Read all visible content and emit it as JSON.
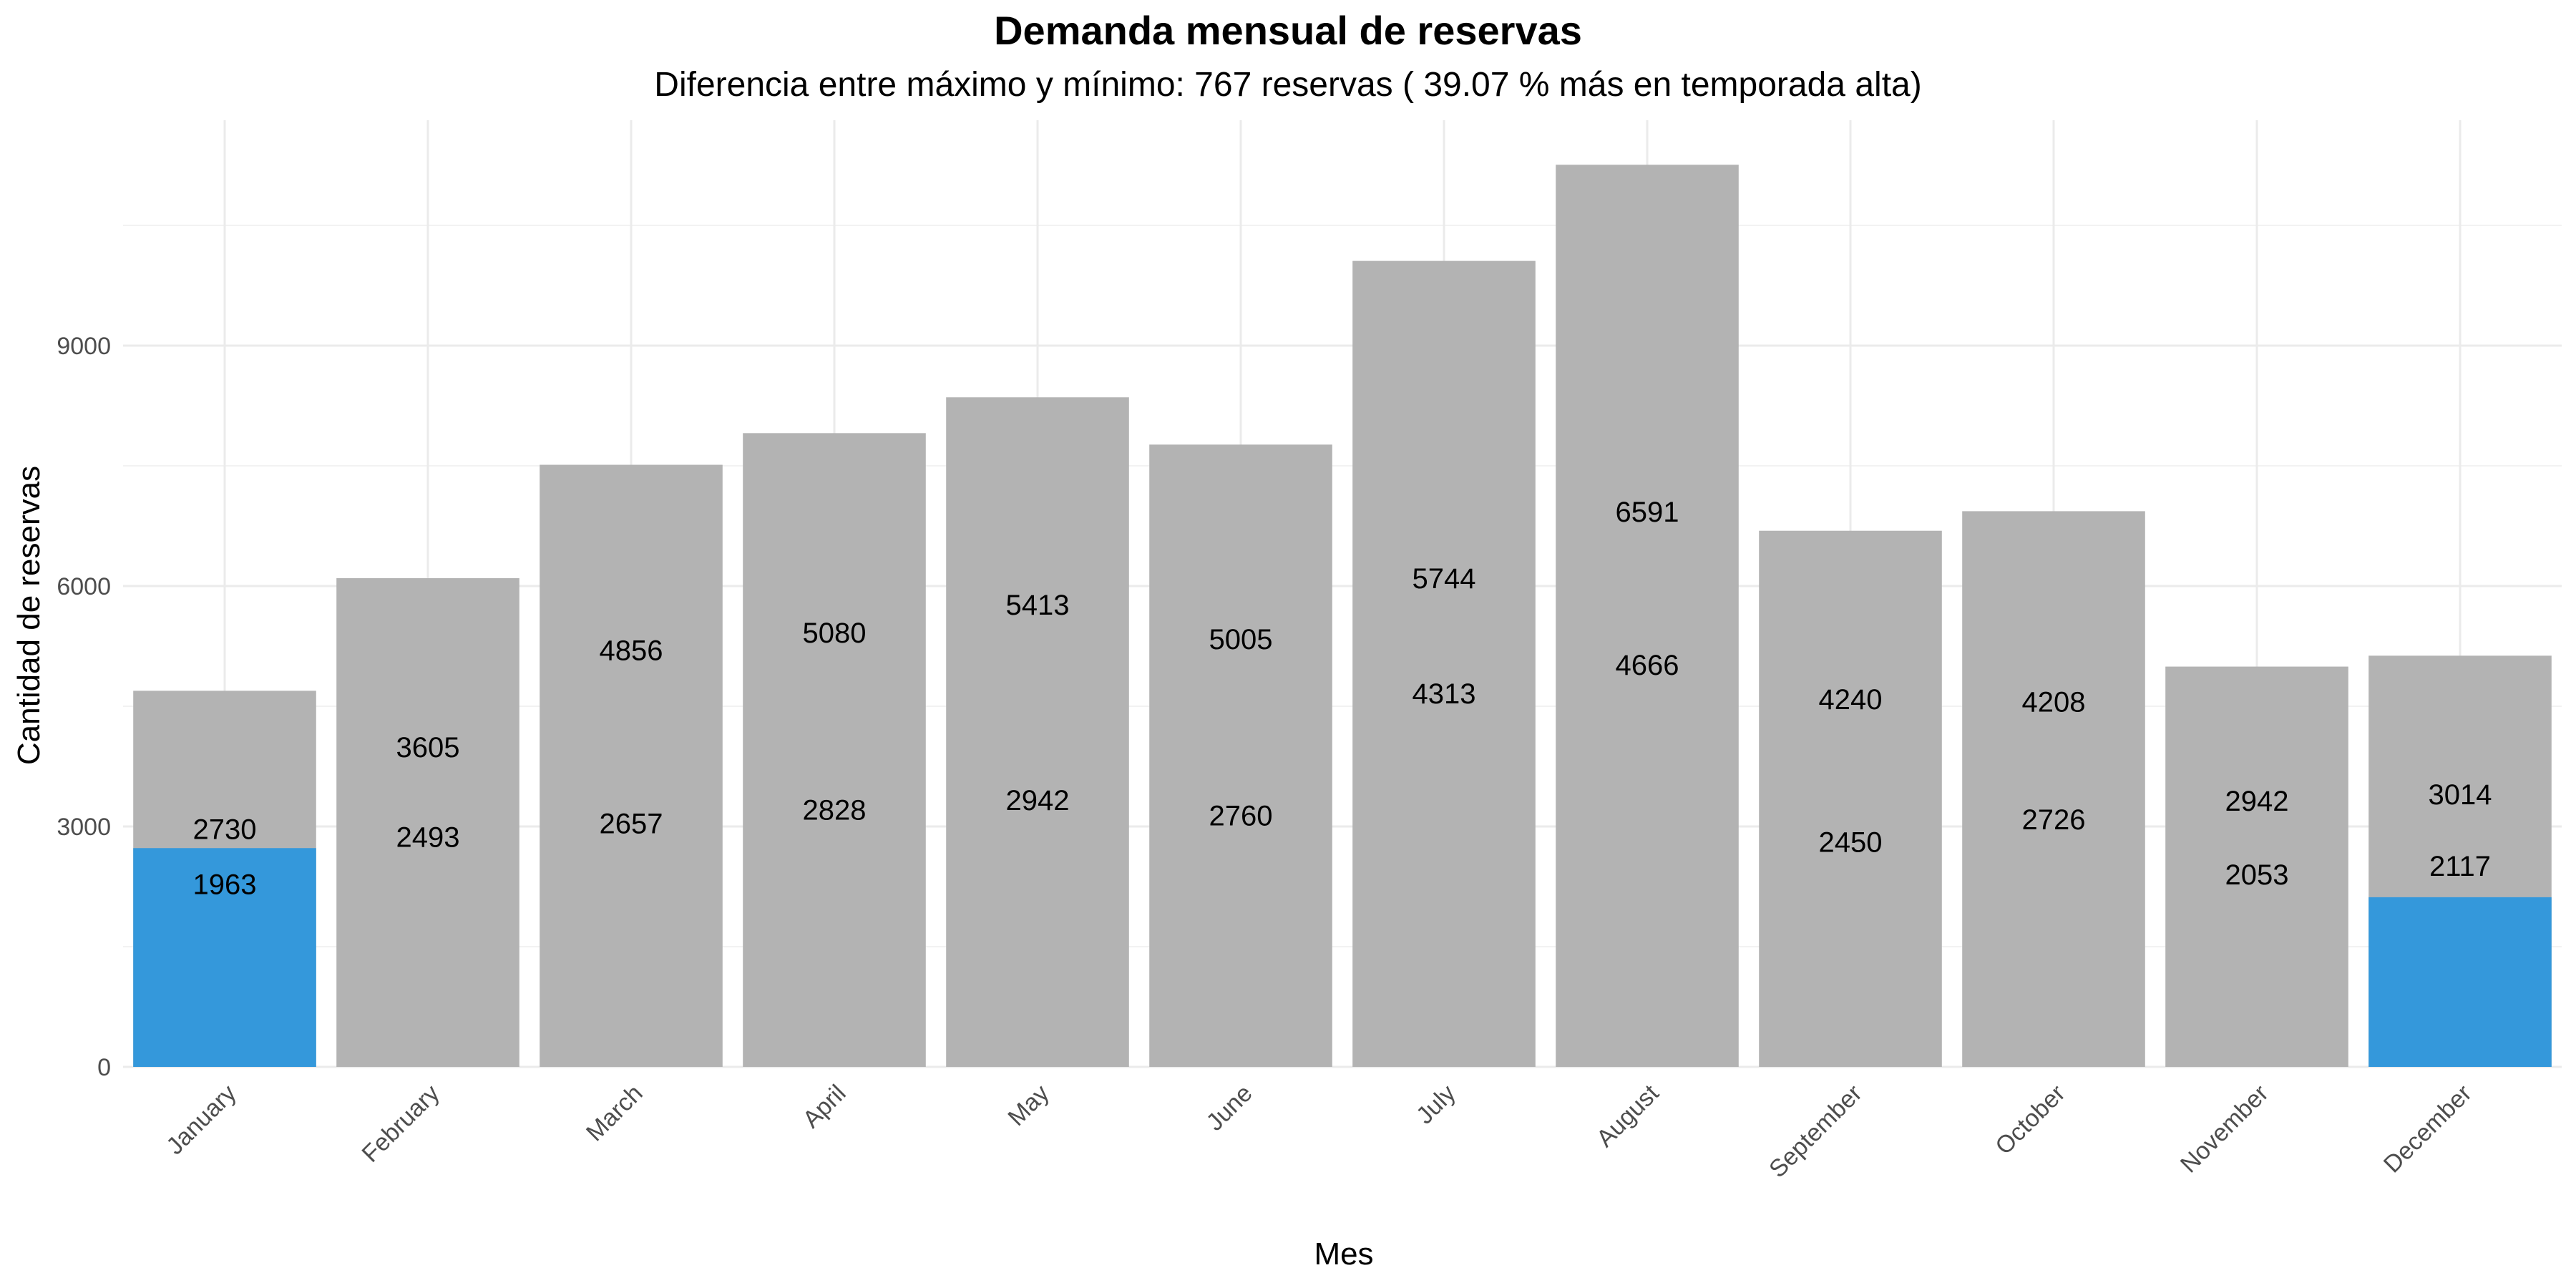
{
  "chart_data": {
    "type": "bar",
    "title": "Demanda mensual de reservas",
    "subtitle": "Diferencia entre máximo y mínimo: 767 reservas ( 39.07 % más en temporada alta)",
    "xlabel": "Mes",
    "ylabel": "Cantidad de reservas",
    "ylim": [
      0,
      11800
    ],
    "yticks": [
      0,
      3000,
      6000,
      9000
    ],
    "grid": true,
    "categories": [
      "January",
      "February",
      "March",
      "April",
      "May",
      "June",
      "July",
      "August",
      "September",
      "October",
      "November",
      "December"
    ],
    "values": [
      4693,
      6098,
      7513,
      7908,
      8355,
      7765,
      10057,
      11257,
      6690,
      6934,
      4995,
      5131
    ],
    "highlight": {
      "color": "#3498db",
      "values": [
        2730,
        null,
        null,
        null,
        null,
        null,
        null,
        null,
        null,
        null,
        null,
        2117
      ]
    },
    "bar_color": "#b3b3b3",
    "labels": [
      [
        {
          "text": "2730",
          "y": 2970
        },
        {
          "text": "1963",
          "y": 2280
        }
      ],
      [
        {
          "text": "3605",
          "y": 3990
        },
        {
          "text": "2493",
          "y": 2870
        }
      ],
      [
        {
          "text": "4856",
          "y": 5200
        },
        {
          "text": "2657",
          "y": 3040
        }
      ],
      [
        {
          "text": "5080",
          "y": 5420
        },
        {
          "text": "2828",
          "y": 3210
        }
      ],
      [
        {
          "text": "5413",
          "y": 5770
        },
        {
          "text": "2942",
          "y": 3330
        }
      ],
      [
        {
          "text": "5005",
          "y": 5340
        },
        {
          "text": "2760",
          "y": 3140
        }
      ],
      [
        {
          "text": "5744",
          "y": 6100
        },
        {
          "text": "4313",
          "y": 4660
        }
      ],
      [
        {
          "text": "6591",
          "y": 6930
        },
        {
          "text": "4666",
          "y": 5020
        }
      ],
      [
        {
          "text": "4240",
          "y": 4590
        },
        {
          "text": "2450",
          "y": 2810
        }
      ],
      [
        {
          "text": "4208",
          "y": 4560
        },
        {
          "text": "2726",
          "y": 3090
        }
      ],
      [
        {
          "text": "2942",
          "y": 3320
        },
        {
          "text": "2053",
          "y": 2400
        }
      ],
      [
        {
          "text": "3014",
          "y": 3400
        },
        {
          "text": "2117",
          "y": 2510
        }
      ]
    ]
  }
}
